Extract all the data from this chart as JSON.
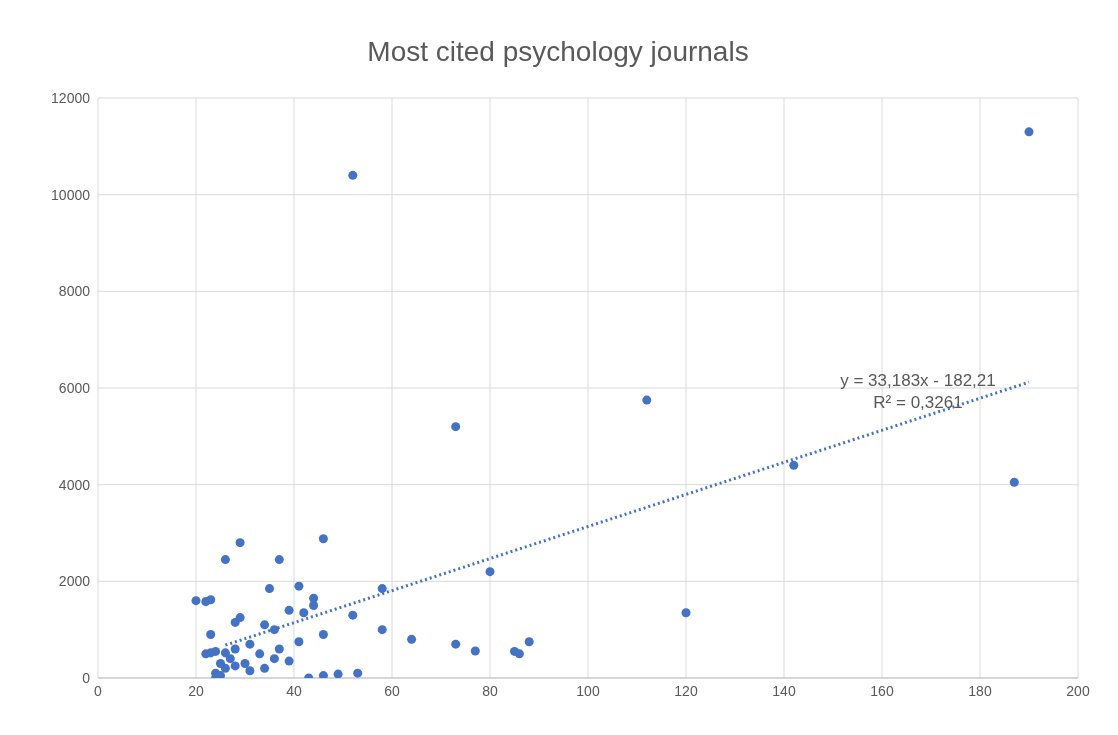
{
  "chart_data": {
    "type": "scatter",
    "title": "Most cited psychology journals",
    "xlim": [
      0,
      200
    ],
    "xticks": [
      0,
      20,
      40,
      60,
      80,
      100,
      120,
      140,
      160,
      180,
      200
    ],
    "ylim": [
      0,
      12000
    ],
    "yticks": [
      0,
      2000,
      4000,
      6000,
      8000,
      10000,
      12000
    ],
    "grid": true,
    "legend": false,
    "marker": "circle",
    "annotations": [
      "y = 33,183x - 182,21",
      "R² = 0,3261"
    ],
    "series": [
      {
        "color": "#4472c4",
        "x": [
          20,
          22,
          23,
          22,
          23,
          24,
          23,
          24,
          24,
          25,
          26,
          25,
          27,
          26,
          28,
          28,
          29,
          29,
          26,
          28,
          30,
          31,
          31,
          33,
          34,
          34,
          35,
          36,
          36,
          37,
          37,
          39,
          39,
          41,
          41,
          42,
          44,
          44,
          43,
          46,
          46,
          46,
          49,
          52,
          52,
          53,
          58,
          58,
          64,
          73,
          73,
          77,
          80,
          85,
          86,
          88,
          112,
          120,
          142,
          187,
          190
        ],
        "values": [
          1600,
          1580,
          1620,
          500,
          520,
          550,
          900,
          100,
          0,
          50,
          200,
          300,
          400,
          520,
          600,
          1150,
          1250,
          2800,
          2450,
          250,
          300,
          150,
          700,
          500,
          200,
          1100,
          1850,
          1000,
          400,
          600,
          2450,
          1400,
          350,
          1900,
          750,
          1350,
          1650,
          1500,
          0,
          50,
          2880,
          900,
          80,
          1300,
          10400,
          100,
          1850,
          1000,
          800,
          5200,
          700,
          560,
          2200,
          550,
          500,
          750,
          5750,
          1350,
          4400,
          4050,
          11300
        ]
      },
      {
        "type": "line",
        "line_style": "dotted",
        "marker": "none",
        "color": "#4472c4",
        "x": [
          26,
          190
        ],
        "values": [
          680,
          6120
        ]
      }
    ]
  }
}
